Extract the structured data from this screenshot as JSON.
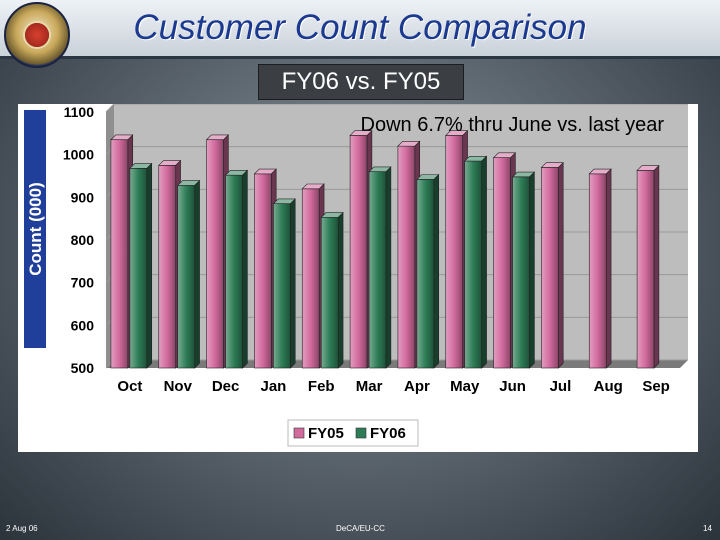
{
  "slide": {
    "title": "Customer Count Comparison",
    "subtitle": "FY06 vs. FY05",
    "footer_left": "2 Aug 06",
    "footer_center": "DeCA/EU-CC",
    "footer_right": "14"
  },
  "colors": {
    "fy05": "#d26a9e",
    "fy06": "#2e7d57",
    "title": "#1b3a8f"
  },
  "chart_data": {
    "type": "bar",
    "annotation": "Down 6.7% thru June vs. last year",
    "ylabel": "Count (000)",
    "xlabel": "",
    "ylim": [
      500,
      1100
    ],
    "yticks": [
      500,
      600,
      700,
      800,
      900,
      1000,
      1100
    ],
    "categories": [
      "Oct",
      "Nov",
      "Dec",
      "Jan",
      "Feb",
      "Mar",
      "Apr",
      "May",
      "Jun",
      "Jul",
      "Aug",
      "Sep"
    ],
    "series": [
      {
        "name": "FY05",
        "values": [
          1035,
          975,
          1035,
          955,
          920,
          1045,
          1020,
          1045,
          993,
          970,
          955,
          963
        ]
      },
      {
        "name": "FY06",
        "values": [
          968,
          928,
          952,
          885,
          853,
          960,
          942,
          985,
          948,
          null,
          null,
          null
        ]
      }
    ],
    "legend_position": "bottom",
    "grid": true
  }
}
